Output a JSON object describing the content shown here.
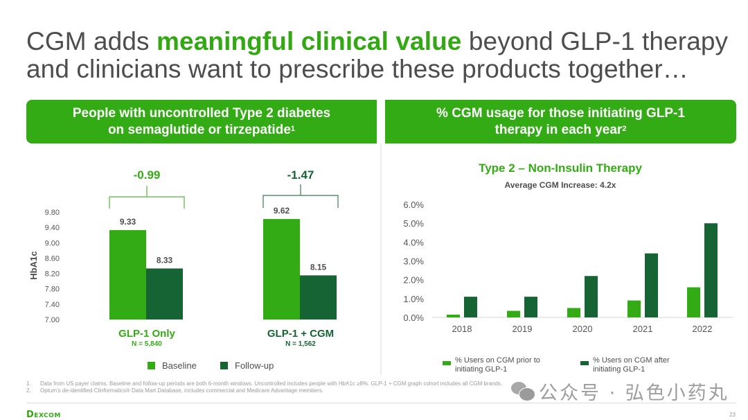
{
  "slide": {
    "title": {
      "part1": "CGM adds ",
      "highlight": "meaningful clinical value",
      "part2": " beyond GLP-1 therapy",
      "line2": "and clinicians want to prescribe these products together…"
    },
    "left_banner": {
      "line1": "People with uncontrolled Type 2 diabetes",
      "line2": "on semaglutide or tirzepatide",
      "sup": "1"
    },
    "right_banner": {
      "line1": "% CGM usage for those initiating GLP-1",
      "line2": "therapy in each year",
      "sup": "2"
    },
    "footnotes": [
      {
        "num": "1.",
        "text": "Data from US payer claims. Baseline and follow-up periods are both 6-month windows. Uncontrolled includes people with HbA1c ≥8%. GLP-1 + CGM graph cohort includes all CGM brands."
      },
      {
        "num": "2.",
        "text": "Optum’s de-identified Clinformatics® Data Mart Database, includes commercial and Medicare Advantage members."
      }
    ],
    "logo": "Dexcom",
    "page_number": "23",
    "watermark": "公众号 · 弘色小药丸"
  },
  "colors": {
    "light_green": "#33ab14",
    "dark_green": "#166334",
    "text_gray": "#4d4d4f",
    "axis_gray": "#e3e3e3"
  },
  "chart_data": [
    {
      "type": "bar",
      "title": "",
      "ylabel": "HbA1c",
      "xlabel": "",
      "ylim": [
        7.0,
        9.8
      ],
      "yticks": [
        "9.80",
        "9.40",
        "9.00",
        "8.60",
        "8.20",
        "7.80",
        "7.40",
        "7.00"
      ],
      "grid": false,
      "legend_position": "bottom",
      "categories": [
        {
          "label": "GLP-1 Only",
          "n": "N = 5,840",
          "change": "-0.99",
          "label_color": "#33ab14"
        },
        {
          "label": "GLP-1 + CGM",
          "n": "N = 1,562",
          "change": "-1.47",
          "label_color": "#166334"
        }
      ],
      "series": [
        {
          "name": "Baseline",
          "values": [
            9.33,
            9.62
          ],
          "labels": [
            "9.33",
            "9.62"
          ],
          "color": "#33ab14"
        },
        {
          "name": "Follow-up",
          "values": [
            8.33,
            8.15
          ],
          "labels": [
            "8.33",
            "8.15"
          ],
          "color": "#166334"
        }
      ]
    },
    {
      "type": "bar",
      "title": "Type 2 – Non-Insulin Therapy",
      "subtitle": "Average CGM Increase: 4.2x",
      "xlabel": "",
      "ylabel": "",
      "ylim": [
        0,
        6
      ],
      "yticks": [
        "6.0%",
        "5.0%",
        "4.0%",
        "3.0%",
        "2.0%",
        "1.0%",
        "0.0%"
      ],
      "grid": false,
      "legend_position": "bottom",
      "categories": [
        "2018",
        "2019",
        "2020",
        "2021",
        "2022"
      ],
      "series": [
        {
          "name": "% Users on CGM prior to initiating GLP-1",
          "legend_lines": [
            "% Users on CGM prior to",
            "initiating GLP-1"
          ],
          "values": [
            0.15,
            0.35,
            0.5,
            0.9,
            1.6
          ],
          "color": "#33ab14"
        },
        {
          "name": "% Users on CGM after initiating GLP-1",
          "legend_lines": [
            "% Users on CGM after",
            "initiating GLP-1"
          ],
          "values": [
            1.1,
            1.1,
            2.2,
            3.4,
            5.0
          ],
          "color": "#166334"
        }
      ]
    }
  ]
}
